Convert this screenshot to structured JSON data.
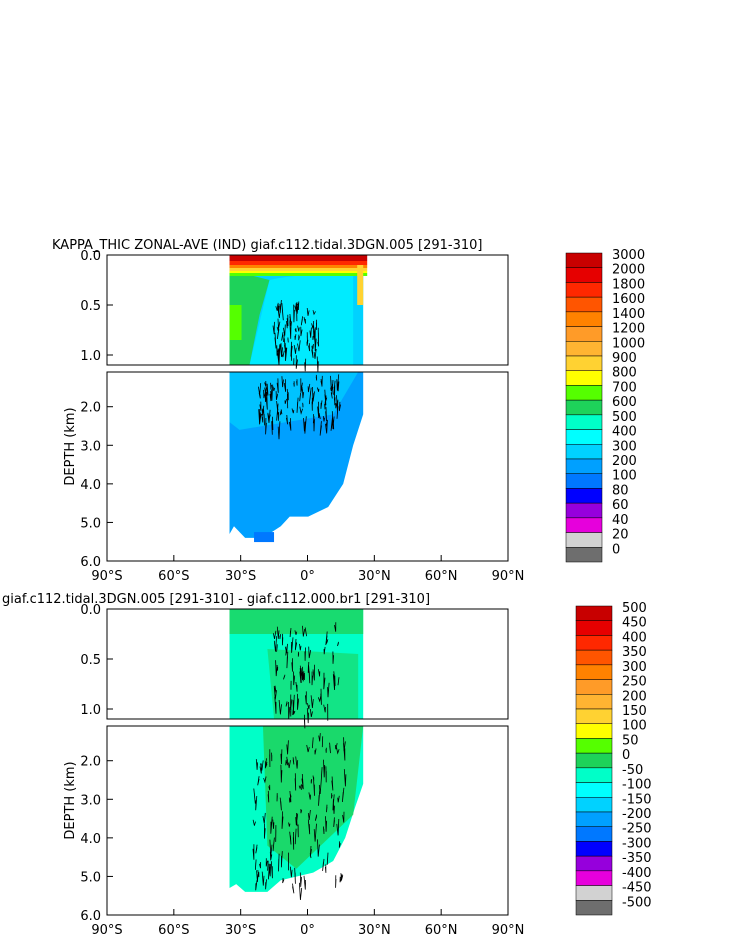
{
  "chart_data": [
    {
      "type": "heatmap",
      "title": "KAPPA_THIC ZONAL-AVE (IND) giaf.c112.tidal.3DGN.005 [291-310]",
      "ylabel": "DEPTH (km)",
      "x_ticks": [
        "90°S",
        "60°S",
        "30°S",
        "0°",
        "30°N",
        "60°N",
        "90°N"
      ],
      "x_range": [
        -90,
        90
      ],
      "y_ticks_upper": [
        "0.0",
        "0.5",
        "1.0"
      ],
      "y_ticks_lower": [
        "2.0",
        "3.0",
        "4.0",
        "5.0",
        "6.0"
      ],
      "y_range": [
        0,
        6
      ],
      "data_extent": {
        "lat": [
          -35,
          25
        ],
        "depth_max": 5.4
      },
      "colorbar": {
        "labels": [
          "3000",
          "2000",
          "1800",
          "1600",
          "1400",
          "1200",
          "1000",
          "900",
          "800",
          "700",
          "600",
          "500",
          "400",
          "300",
          "200",
          "100",
          "80",
          "60",
          "40",
          "20",
          "0"
        ],
        "colors": [
          "#c80000",
          "#e60000",
          "#ff2800",
          "#ff5500",
          "#ff8200",
          "#ff9b28",
          "#ffb432",
          "#ffd232",
          "#ffff00",
          "#55ff00",
          "#1ed25a",
          "#00ffc8",
          "#00ffff",
          "#00d2ff",
          "#00a0ff",
          "#0078ff",
          "#0000ff",
          "#9600dc",
          "#e600dc",
          "#d2d2d2",
          "#6e6e6e"
        ]
      }
    },
    {
      "type": "heatmap",
      "title": "giaf.c112.tidal.3DGN.005 [291-310] - giaf.c112.000.br1 [291-310]",
      "ylabel": "DEPTH (km)",
      "x_ticks": [
        "90°S",
        "60°S",
        "30°S",
        "0°",
        "30°N",
        "60°N",
        "90°N"
      ],
      "x_range": [
        -90,
        90
      ],
      "y_ticks_upper": [
        "0.0",
        "0.5",
        "1.0"
      ],
      "y_ticks_lower": [
        "2.0",
        "3.0",
        "4.0",
        "5.0",
        "6.0"
      ],
      "y_range": [
        0,
        6
      ],
      "data_extent": {
        "lat": [
          -35,
          25
        ],
        "depth_max": 5.4
      },
      "colorbar": {
        "labels": [
          "500",
          "450",
          "400",
          "350",
          "300",
          "250",
          "200",
          "150",
          "100",
          "50",
          "0",
          "-50",
          "-100",
          "-150",
          "-200",
          "-250",
          "-300",
          "-350",
          "-400",
          "-450",
          "-500"
        ],
        "colors": [
          "#c80000",
          "#e60000",
          "#ff2800",
          "#ff5500",
          "#ff8200",
          "#ff9b28",
          "#ffb432",
          "#ffd232",
          "#ffff00",
          "#55ff00",
          "#1ed25a",
          "#00ffc8",
          "#00ffff",
          "#00d2ff",
          "#00a0ff",
          "#0078ff",
          "#0000ff",
          "#9600dc",
          "#e600dc",
          "#d2d2d2",
          "#6e6e6e"
        ]
      }
    }
  ]
}
